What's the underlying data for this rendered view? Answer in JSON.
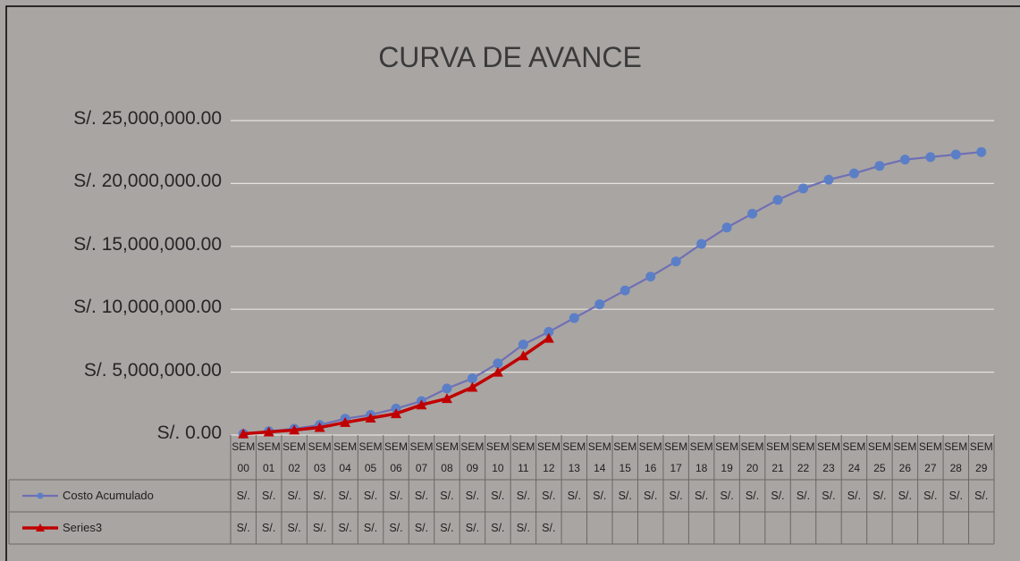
{
  "chart_data": {
    "type": "line",
    "title": "CURVA DE AVANCE",
    "categories": [
      "SEM 00",
      "SEM 01",
      "SEM 02",
      "SEM 03",
      "SEM 04",
      "SEM 05",
      "SEM 06",
      "SEM 07",
      "SEM 08",
      "SEM 09",
      "SEM 10",
      "SEM 11",
      "SEM 12",
      "SEM 13",
      "SEM 14",
      "SEM 15",
      "SEM 16",
      "SEM 17",
      "SEM 18",
      "SEM 19",
      "SEM 20",
      "SEM 21",
      "SEM 22",
      "SEM 23",
      "SEM 24",
      "SEM 25",
      "SEM 26",
      "SEM 27",
      "SEM 28",
      "SEM 29"
    ],
    "series": [
      {
        "name": "Costo Acumulado",
        "color": "#6f6fb5",
        "marker": "circle",
        "marker_color": "#5b7fc7",
        "values": [
          100000,
          300000,
          500000,
          800000,
          1300000,
          1600000,
          2100000,
          2700000,
          3700000,
          4500000,
          5700000,
          7200000,
          8200000,
          9300000,
          10400000,
          11500000,
          12600000,
          13800000,
          15200000,
          16500000,
          17600000,
          18700000,
          19600000,
          20300000,
          20800000,
          21400000,
          21900000,
          22100000,
          22300000,
          22500000
        ],
        "value_labels": [
          "S/.",
          "S/.",
          "S/.",
          "S/.",
          "S/.",
          "S/.",
          "S/.",
          "S/.",
          "S/.",
          "S/.",
          "S/.",
          "S/.",
          "S/.",
          "S/.",
          "S/.",
          "S/.",
          "S/.",
          "S/.",
          "S/.",
          "S/.",
          "S/.",
          "S/.",
          "S/.",
          "S/.",
          "S/.",
          "S/.",
          "S/.",
          "S/.",
          "S/.",
          "S/."
        ]
      },
      {
        "name": "Series3",
        "color": "#c00000",
        "marker": "triangle",
        "marker_color": "#c00000",
        "values": [
          100000,
          250000,
          400000,
          600000,
          1000000,
          1350000,
          1700000,
          2400000,
          2900000,
          3800000,
          5000000,
          6300000,
          7700000,
          null,
          null,
          null,
          null,
          null,
          null,
          null,
          null,
          null,
          null,
          null,
          null,
          null,
          null,
          null,
          null,
          null
        ],
        "value_labels": [
          "S/.",
          "S/.",
          "S/.",
          "S/.",
          "S/.",
          "S/.",
          "S/.",
          "S/.",
          "S/.",
          "S/.",
          "S/.",
          "S/.",
          "S/.",
          null,
          null,
          null,
          null,
          null,
          null,
          null,
          null,
          null,
          null,
          null,
          null,
          null,
          null,
          null,
          null,
          null
        ]
      }
    ],
    "ylim": [
      0,
      25000000
    ],
    "yticks": [
      {
        "value": 0,
        "label": "S/. 0.00"
      },
      {
        "value": 5000000,
        "label": "S/. 5,000,000.00"
      },
      {
        "value": 10000000,
        "label": "S/. 10,000,000.00"
      },
      {
        "value": 15000000,
        "label": "S/. 15,000,000.00"
      },
      {
        "value": 20000000,
        "label": "S/. 20,000,000.00"
      },
      {
        "value": 25000000,
        "label": "S/. 25,000,000.00"
      }
    ],
    "grid": true,
    "data_table": true
  }
}
